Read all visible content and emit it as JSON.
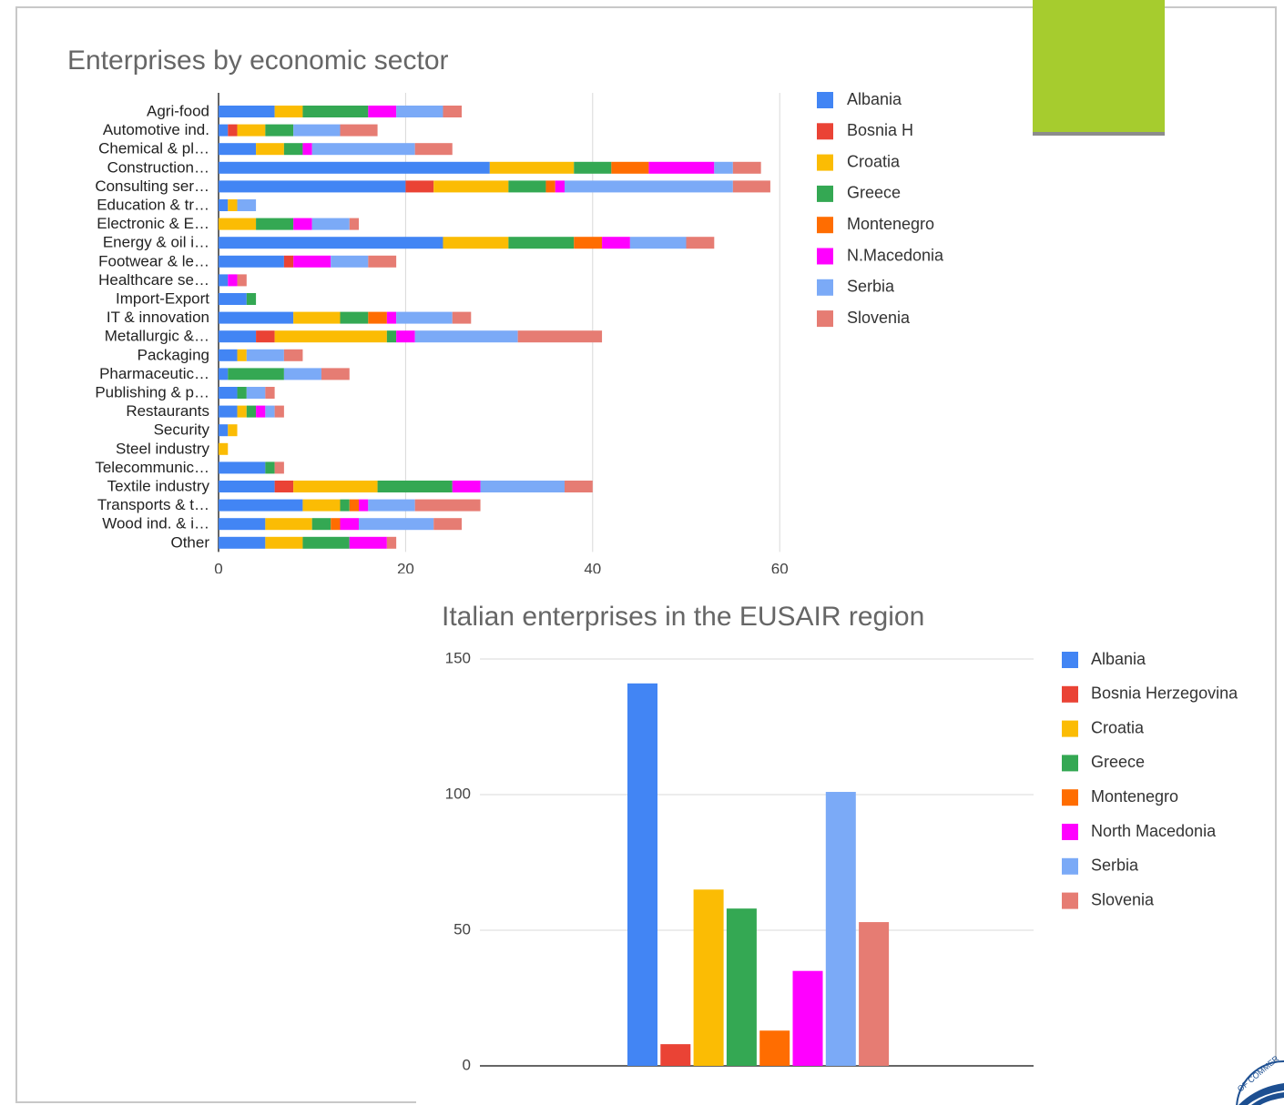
{
  "colors": {
    "accent_box": "#a6cc2e",
    "albania": "#4285f4",
    "bosnia": "#ea4335",
    "croatia": "#fbbc04",
    "greece": "#34a853",
    "montenegro": "#ff6d01",
    "macedonia": "#ff00ff",
    "serbia": "#7baaf7",
    "slovenia": "#e67c73"
  },
  "chart_data": [
    {
      "type": "bar",
      "orientation": "horizontal",
      "stacked": true,
      "title": "Enterprises by economic sector",
      "xlim": [
        0,
        60
      ],
      "x_ticks": [
        "0",
        "20",
        "40",
        "60"
      ],
      "grid": true,
      "legend_position": "right",
      "categories": [
        "Agri-food",
        "Automotive ind.",
        "Chemical & pl…",
        "Construction…",
        "Consulting ser…",
        "Education & tr…",
        "Electronic & E…",
        "Energy & oil i…",
        "Footwear & le…",
        "Healthcare se…",
        "Import-Export",
        "IT & innovation",
        "Metallurgic &…",
        "Packaging",
        "Pharmaceutic…",
        "Publishing & p…",
        "Restaurants",
        "Security",
        "Steel industry",
        "Telecommunic…",
        "Textile industry",
        "Transports & t…",
        "Wood ind. & i…",
        "Other"
      ],
      "series": [
        {
          "name": "Albania",
          "color": "#4285f4",
          "values": [
            6,
            1,
            4,
            29,
            20,
            1,
            0,
            24,
            7,
            1,
            3,
            8,
            4,
            2,
            1,
            2,
            2,
            1,
            0,
            5,
            6,
            9,
            5,
            5
          ]
        },
        {
          "name": "Bosnia H",
          "color": "#ea4335",
          "values": [
            0,
            1,
            0,
            0,
            3,
            0,
            0,
            0,
            1,
            0,
            0,
            0,
            2,
            0,
            0,
            0,
            0,
            0,
            0,
            0,
            2,
            0,
            0,
            0
          ]
        },
        {
          "name": "Croatia",
          "color": "#fbbc04",
          "values": [
            3,
            3,
            3,
            9,
            8,
            1,
            4,
            7,
            0,
            0,
            0,
            5,
            12,
            1,
            0,
            0,
            1,
            1,
            1,
            0,
            9,
            4,
            5,
            4
          ]
        },
        {
          "name": "Greece",
          "color": "#34a853",
          "values": [
            7,
            3,
            2,
            4,
            4,
            0,
            4,
            7,
            0,
            0,
            1,
            3,
            1,
            0,
            6,
            1,
            1,
            0,
            0,
            1,
            8,
            1,
            2,
            5
          ]
        },
        {
          "name": "Montenegro",
          "color": "#ff6d01",
          "values": [
            0,
            0,
            0,
            4,
            1,
            0,
            0,
            3,
            0,
            0,
            0,
            2,
            0,
            0,
            0,
            0,
            0,
            0,
            0,
            0,
            0,
            1,
            1,
            0
          ]
        },
        {
          "name": "N.Macedonia",
          "color": "#ff00ff",
          "values": [
            3,
            0,
            1,
            7,
            1,
            0,
            2,
            3,
            4,
            1,
            0,
            1,
            2,
            0,
            0,
            0,
            1,
            0,
            0,
            0,
            3,
            1,
            2,
            4
          ]
        },
        {
          "name": "Serbia",
          "color": "#7baaf7",
          "values": [
            5,
            5,
            11,
            2,
            18,
            2,
            4,
            6,
            4,
            0,
            0,
            6,
            11,
            4,
            4,
            2,
            1,
            0,
            0,
            0,
            9,
            5,
            8,
            0
          ]
        },
        {
          "name": "Slovenia",
          "color": "#e67c73",
          "values": [
            2,
            4,
            4,
            3,
            4,
            0,
            1,
            3,
            3,
            1,
            0,
            2,
            9,
            2,
            3,
            1,
            1,
            0,
            0,
            1,
            3,
            7,
            3,
            1
          ]
        }
      ]
    },
    {
      "type": "bar",
      "title": "Italian enterprises in the EUSAIR region",
      "ylim": [
        0,
        150
      ],
      "y_ticks": [
        "0",
        "50",
        "100",
        "150"
      ],
      "grid": true,
      "legend_position": "right",
      "series": [
        {
          "name": "Albania",
          "color": "#4285f4",
          "value": 141
        },
        {
          "name": "Bosnia Herzegovina",
          "color": "#ea4335",
          "value": 8
        },
        {
          "name": "Croatia",
          "color": "#fbbc04",
          "value": 65
        },
        {
          "name": "Greece",
          "color": "#34a853",
          "value": 58
        },
        {
          "name": "Montenegro",
          "color": "#ff6d01",
          "value": 13
        },
        {
          "name": "North Macedonia",
          "color": "#ff00ff",
          "value": 35
        },
        {
          "name": "Serbia",
          "color": "#7baaf7",
          "value": 101
        },
        {
          "name": "Slovenia",
          "color": "#e67c73",
          "value": 53
        }
      ]
    }
  ],
  "logo": {
    "name": "chamber-of-commerce-logo",
    "text": "OF COMMERCE"
  }
}
